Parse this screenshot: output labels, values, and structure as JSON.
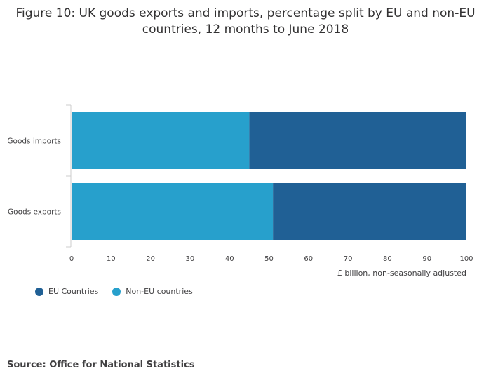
{
  "chart_data": {
    "type": "bar",
    "orientation": "horizontal",
    "stacked": true,
    "title": "Figure 10: UK goods exports and imports, percentage split by EU and non-EU countries, 12 months to June 2018",
    "categories": [
      "Goods imports",
      "Goods exports"
    ],
    "series": [
      {
        "name": "Non-EU countries",
        "color": "#27a0cc",
        "values": [
          45,
          51
        ]
      },
      {
        "name": "EU Countries",
        "color": "#206095",
        "values": [
          55,
          49
        ]
      }
    ],
    "xlim": [
      0,
      100
    ],
    "xticks": [
      "0",
      "10",
      "20",
      "30",
      "40",
      "50",
      "60",
      "70",
      "80",
      "90",
      "100"
    ],
    "xlabel": "£ billion, non-seasonally adjusted",
    "legend": [
      {
        "label": "EU Countries",
        "color": "#206095"
      },
      {
        "label": "Non-EU countries",
        "color": "#27a0cc"
      }
    ],
    "legend_position": "bottom-left"
  },
  "source": "Source: Office for National Statistics"
}
